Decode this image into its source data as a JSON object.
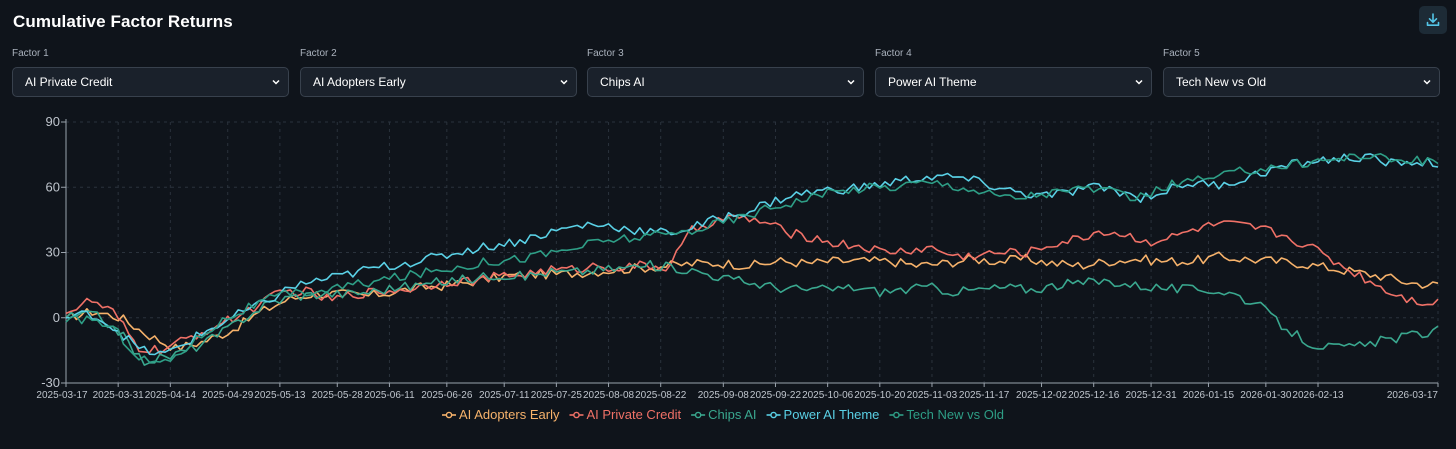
{
  "header": {
    "title": "Cumulative Factor Returns",
    "download_icon": "download-icon"
  },
  "factors": [
    {
      "label": "Factor 1",
      "value": "AI Private Credit"
    },
    {
      "label": "Factor 2",
      "value": "AI Adopters Early"
    },
    {
      "label": "Factor 3",
      "value": "Chips AI"
    },
    {
      "label": "Factor 4",
      "value": "Power AI Theme"
    },
    {
      "label": "Factor 5",
      "value": "Tech New vs Old"
    }
  ],
  "chart_data": {
    "type": "line",
    "title": "Cumulative Factor Returns",
    "xlabel": "",
    "ylabel": "",
    "ylim": [
      -30,
      90
    ],
    "yticks": [
      -30,
      0,
      30,
      60,
      90
    ],
    "grid": true,
    "legend_position": "bottom-center",
    "x_ticks": [
      "2025-03-17",
      "2025-03-31",
      "2025-04-14",
      "2025-04-29",
      "2025-05-13",
      "2025-05-28",
      "2025-06-11",
      "2025-06-26",
      "2025-07-11",
      "2025-07-25",
      "2025-08-08",
      "2025-08-22",
      "2025-09-08",
      "2025-09-22",
      "2025-10-06",
      "2025-10-20",
      "2025-11-03",
      "2025-11-17",
      "2025-12-02",
      "2025-12-16",
      "2025-12-31",
      "2026-01-15",
      "2026-01-30",
      "2026-02-13",
      "2026-03-17"
    ],
    "x_tick_positions": [
      0,
      10,
      20,
      31,
      41,
      52,
      62,
      73,
      84,
      94,
      104,
      114,
      126,
      136,
      146,
      156,
      166,
      176,
      187,
      197,
      208,
      219,
      230,
      240,
      263
    ],
    "series": [
      {
        "name": "AI Adopters Early",
        "color": "#f6b26b",
        "values": [
          0,
          3,
          0,
          -8,
          -14,
          -11,
          -6,
          2,
          8,
          11,
          11,
          10,
          12,
          14,
          15,
          17,
          19,
          20,
          20,
          21,
          22,
          23,
          24,
          25,
          25,
          24,
          26,
          25,
          26,
          26,
          26,
          24,
          25,
          27,
          26,
          27,
          25,
          24,
          26,
          27,
          26,
          26,
          28,
          27,
          26,
          25,
          23,
          21,
          19,
          16,
          15
        ]
      },
      {
        "name": "AI Private Credit",
        "color": "#f07167",
        "values": [
          2,
          8,
          2,
          -14,
          -15,
          -10,
          -5,
          0,
          6,
          12,
          12,
          8,
          11,
          12,
          13,
          15,
          17,
          17,
          19,
          20,
          22,
          22,
          24,
          23,
          24,
          23,
          40,
          45,
          46,
          44,
          39,
          37,
          34,
          33,
          30,
          31,
          32,
          28,
          29,
          30,
          30,
          34,
          36,
          40,
          38,
          35,
          37,
          41,
          43,
          42,
          40,
          36,
          31,
          24,
          18,
          12,
          8,
          7
        ]
      },
      {
        "name": "Chips AI",
        "color": "#3aa88f",
        "values": [
          0,
          2,
          -5,
          -20,
          -18,
          -14,
          -8,
          0,
          7,
          10,
          11,
          11,
          12,
          14,
          15,
          17,
          18,
          20,
          19,
          21,
          21,
          22,
          23,
          24,
          23,
          21,
          18,
          16,
          14,
          13,
          13,
          14,
          12,
          13,
          14,
          12,
          13,
          14,
          13,
          15,
          16,
          17,
          15,
          14,
          13,
          13,
          11,
          5,
          -5,
          -12,
          -14,
          -13,
          -10,
          -8,
          -6
        ]
      },
      {
        "name": "Power AI Theme",
        "color": "#5ad1e6",
        "values": [
          0,
          2,
          -5,
          -15,
          -17,
          -10,
          -4,
          2,
          7,
          14,
          17,
          19,
          22,
          24,
          26,
          28,
          31,
          33,
          35,
          38,
          41,
          43,
          42,
          40,
          39,
          41,
          45,
          48,
          52,
          56,
          58,
          59,
          60,
          62,
          64,
          65,
          64,
          61,
          58,
          56,
          57,
          60,
          59,
          55,
          58,
          62,
          61,
          63,
          67,
          70,
          72,
          73,
          74,
          71,
          72,
          71
        ]
      },
      {
        "name": "Tech New vs Old",
        "color": "#2e9e86",
        "values": [
          -2,
          0,
          -6,
          -19,
          -21,
          -12,
          -3,
          3,
          8,
          11,
          12,
          14,
          16,
          18,
          20,
          22,
          24,
          26,
          27,
          29,
          31,
          34,
          36,
          37,
          38,
          40,
          43,
          46,
          50,
          53,
          56,
          58,
          60,
          60,
          62,
          62,
          60,
          57,
          55,
          57,
          58,
          60,
          57,
          55,
          60,
          63,
          64,
          67,
          69,
          70,
          72,
          73,
          75,
          73,
          72,
          72
        ]
      }
    ]
  }
}
